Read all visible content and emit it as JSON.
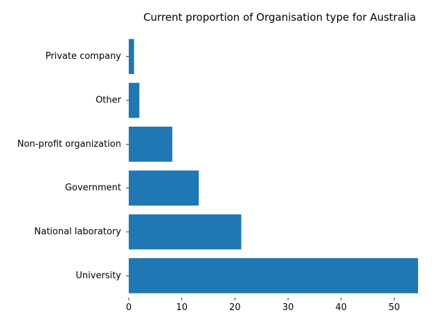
{
  "chart_data": {
    "type": "bar",
    "orientation": "horizontal",
    "title": "Current proportion of Organisation type for Australia",
    "xlabel": "",
    "ylabel": "",
    "categories": [
      "University",
      "National laboratory",
      "Government",
      "Non-profit organization",
      "Other",
      "Private company"
    ],
    "values": [
      54.5,
      21.2,
      13.2,
      8.2,
      2.0,
      1.0
    ],
    "xlim": [
      0,
      54.5
    ],
    "xticks": [
      0,
      10,
      20,
      30,
      40,
      50
    ],
    "xtick_labels": [
      "0",
      "10",
      "20",
      "30",
      "40",
      "50"
    ],
    "bar_color": "#1f77b4",
    "grid": false
  }
}
